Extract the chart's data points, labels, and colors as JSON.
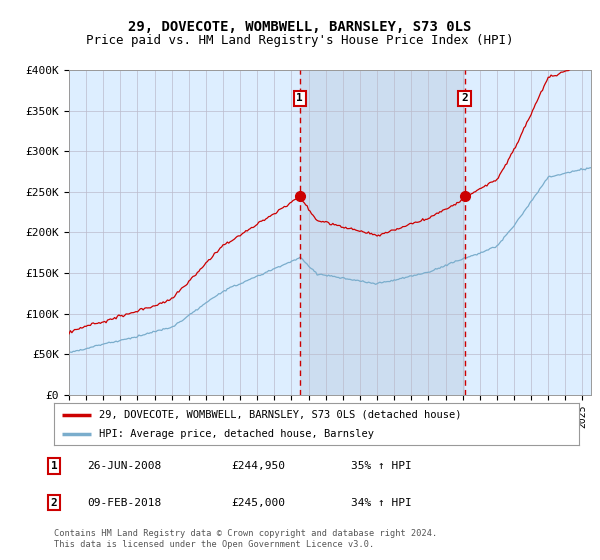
{
  "title": "29, DOVECOTE, WOMBWELL, BARNSLEY, S73 0LS",
  "subtitle": "Price paid vs. HM Land Registry's House Price Index (HPI)",
  "ylim": [
    0,
    400000
  ],
  "yticks": [
    0,
    50000,
    100000,
    150000,
    200000,
    250000,
    300000,
    350000,
    400000
  ],
  "ytick_labels": [
    "£0",
    "£50K",
    "£100K",
    "£150K",
    "£200K",
    "£250K",
    "£300K",
    "£350K",
    "£400K"
  ],
  "xlim_start": 1995.0,
  "xlim_end": 2025.5,
  "t1_x": 2008.486,
  "t2_x": 2018.11,
  "t1_y": 244950,
  "t2_y": 245000,
  "transaction1": {
    "label": "1",
    "date": "26-JUN-2008",
    "price": "£244,950",
    "hpi": "35% ↑ HPI"
  },
  "transaction2": {
    "label": "2",
    "date": "09-FEB-2018",
    "price": "£245,000",
    "hpi": "34% ↑ HPI"
  },
  "red_line_color": "#cc0000",
  "blue_line_color": "#7aadcc",
  "vline_color": "#cc0000",
  "bg_color": "#ddeeff",
  "highlight_color": "#ccddf0",
  "legend_label_red": "29, DOVECOTE, WOMBWELL, BARNSLEY, S73 0LS (detached house)",
  "legend_label_blue": "HPI: Average price, detached house, Barnsley",
  "footer": "Contains HM Land Registry data © Crown copyright and database right 2024.\nThis data is licensed under the Open Government Licence v3.0.",
  "title_fontsize": 10,
  "subtitle_fontsize": 9
}
